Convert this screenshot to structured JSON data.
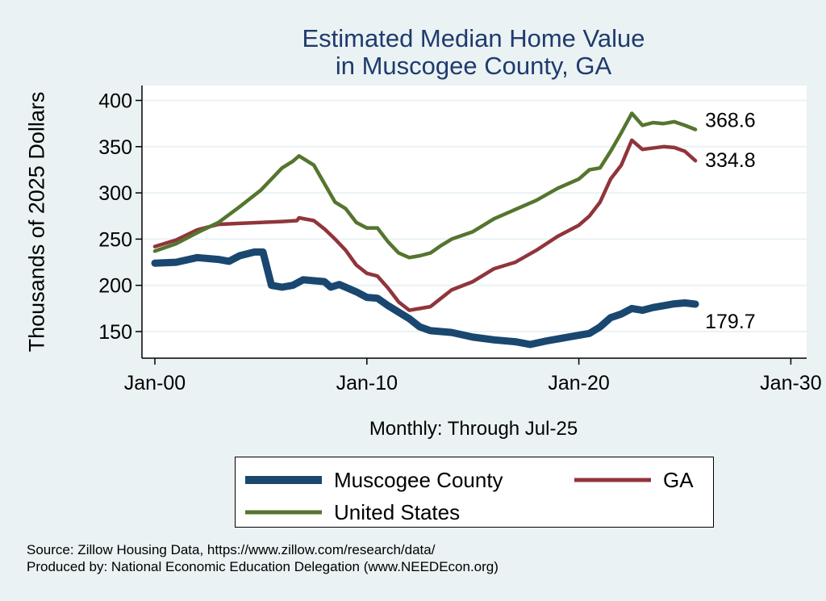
{
  "chart_data": {
    "type": "line",
    "title": [
      "Estimated Median Home Value",
      "in Muscogee County, GA"
    ],
    "ylabel": "Thousands of 2025 Dollars",
    "xlabel": "Monthly: Through Jul-25",
    "xticks": [
      {
        "year": 2000,
        "label": "Jan-00"
      },
      {
        "year": 2010,
        "label": "Jan-10"
      },
      {
        "year": 2020,
        "label": "Jan-20"
      },
      {
        "year": 2030,
        "label": "Jan-30"
      }
    ],
    "yticks": [
      150,
      200,
      250,
      300,
      350,
      400
    ],
    "ylim": [
      140,
      410
    ],
    "xlim": [
      1999.4,
      2030.5
    ],
    "grid": true,
    "legend_position": "bottom",
    "series": [
      {
        "name": "Muscogee County",
        "color": "#1a476f",
        "end_label": "179.7",
        "points": [
          [
            2000,
            224
          ],
          [
            2001,
            225
          ],
          [
            2002,
            230
          ],
          [
            2003,
            228
          ],
          [
            2003.5,
            226
          ],
          [
            2004,
            232
          ],
          [
            2004.7,
            236
          ],
          [
            2005.1,
            236
          ],
          [
            2005.5,
            200
          ],
          [
            2006,
            198
          ],
          [
            2006.5,
            200
          ],
          [
            2007,
            206
          ],
          [
            2008,
            204
          ],
          [
            2008.3,
            198
          ],
          [
            2008.7,
            201
          ],
          [
            2009.5,
            193
          ],
          [
            2010,
            187
          ],
          [
            2010.5,
            186
          ],
          [
            2011,
            178
          ],
          [
            2012,
            164
          ],
          [
            2012.5,
            155
          ],
          [
            2013,
            151
          ],
          [
            2014,
            149
          ],
          [
            2015,
            144
          ],
          [
            2016,
            141
          ],
          [
            2017,
            139
          ],
          [
            2017.7,
            136
          ],
          [
            2018.5,
            140
          ],
          [
            2019,
            142
          ],
          [
            2020,
            146
          ],
          [
            2020.5,
            148
          ],
          [
            2021,
            155
          ],
          [
            2021.5,
            165
          ],
          [
            2022,
            169
          ],
          [
            2022.5,
            175
          ],
          [
            2023,
            173
          ],
          [
            2023.5,
            176
          ],
          [
            2024,
            178
          ],
          [
            2024.5,
            180
          ],
          [
            2025,
            181
          ],
          [
            2025.5,
            179.7
          ]
        ]
      },
      {
        "name": "GA",
        "color": "#90353b",
        "end_label": "334.8",
        "points": [
          [
            2000,
            242
          ],
          [
            2001,
            249
          ],
          [
            2002,
            260
          ],
          [
            2003,
            266
          ],
          [
            2004,
            267
          ],
          [
            2005,
            268
          ],
          [
            2006,
            269
          ],
          [
            2006.7,
            270
          ],
          [
            2006.8,
            273
          ],
          [
            2007.5,
            270
          ],
          [
            2008,
            261
          ],
          [
            2008.5,
            250
          ],
          [
            2009,
            238
          ],
          [
            2009.5,
            222
          ],
          [
            2010,
            213
          ],
          [
            2010.5,
            210
          ],
          [
            2011,
            197
          ],
          [
            2011.5,
            182
          ],
          [
            2012,
            173
          ],
          [
            2012.5,
            175
          ],
          [
            2013,
            177
          ],
          [
            2013.5,
            186
          ],
          [
            2014,
            195
          ],
          [
            2015,
            204
          ],
          [
            2016,
            218
          ],
          [
            2017,
            225
          ],
          [
            2018,
            238
          ],
          [
            2019,
            253
          ],
          [
            2020,
            265
          ],
          [
            2020.5,
            275
          ],
          [
            2021,
            290
          ],
          [
            2021.5,
            315
          ],
          [
            2022,
            330
          ],
          [
            2022.5,
            357
          ],
          [
            2023,
            347
          ],
          [
            2024,
            350
          ],
          [
            2024.5,
            349
          ],
          [
            2025,
            345
          ],
          [
            2025.5,
            334.8
          ]
        ]
      },
      {
        "name": "United States",
        "color": "#55752f",
        "end_label": "368.6",
        "points": [
          [
            2000,
            237
          ],
          [
            2001,
            245
          ],
          [
            2002,
            257
          ],
          [
            2003,
            268
          ],
          [
            2004,
            285
          ],
          [
            2005,
            303
          ],
          [
            2006,
            327
          ],
          [
            2006.5,
            334
          ],
          [
            2006.8,
            340
          ],
          [
            2007.5,
            330
          ],
          [
            2008,
            310
          ],
          [
            2008.5,
            290
          ],
          [
            2009,
            283
          ],
          [
            2009.5,
            268
          ],
          [
            2010,
            262
          ],
          [
            2010.5,
            262
          ],
          [
            2011,
            247
          ],
          [
            2011.5,
            235
          ],
          [
            2012,
            230
          ],
          [
            2012.5,
            232
          ],
          [
            2013,
            235
          ],
          [
            2013.5,
            243
          ],
          [
            2014,
            250
          ],
          [
            2015,
            258
          ],
          [
            2016,
            272
          ],
          [
            2017,
            282
          ],
          [
            2018,
            292
          ],
          [
            2019,
            305
          ],
          [
            2020,
            315
          ],
          [
            2020.5,
            325
          ],
          [
            2021,
            327
          ],
          [
            2021.5,
            345
          ],
          [
            2022,
            365
          ],
          [
            2022.5,
            386
          ],
          [
            2023,
            373
          ],
          [
            2023.5,
            376
          ],
          [
            2024,
            375
          ],
          [
            2024.5,
            377
          ],
          [
            2025,
            373
          ],
          [
            2025.5,
            368.6
          ]
        ]
      }
    ]
  },
  "footer": {
    "source": "Source: Zillow Housing Data, https://www.zillow.com/research/data/",
    "produced": "Produced by: National Economic Education Delegation (www.NEEDEcon.org)"
  }
}
